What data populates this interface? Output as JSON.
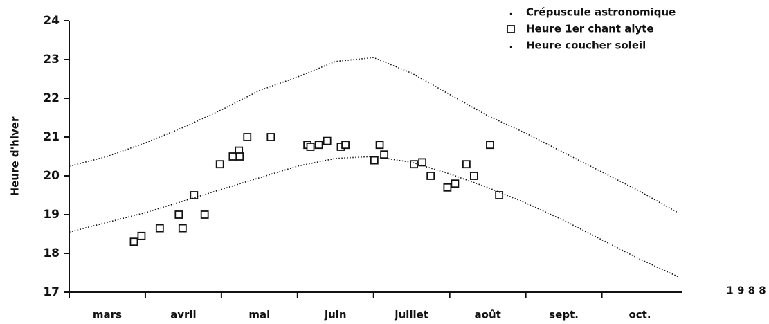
{
  "chart_data": {
    "type": "scatter",
    "ylabel": "Heure d'hiver",
    "annotation": "1 9 8 8",
    "categories": [
      "mars",
      "avril",
      "mai",
      "juin",
      "juillet",
      "août",
      "sept.",
      "oct."
    ],
    "xlim": [
      0,
      8.05
    ],
    "ylim": [
      17,
      24
    ],
    "yticks": [
      17,
      18,
      19,
      20,
      21,
      22,
      23,
      24
    ],
    "legend": "top-right",
    "series": [
      {
        "name": "Crépuscule astronomique",
        "color": "#111111",
        "marker": "dotted-line",
        "x": [
          0,
          0.5,
          1,
          1.5,
          2,
          2.5,
          3,
          3.5,
          4,
          4.5,
          5,
          5.5,
          6,
          6.5,
          7,
          7.5,
          8
        ],
        "values": [
          20.25,
          20.5,
          20.85,
          21.25,
          21.7,
          22.2,
          22.55,
          22.95,
          23.05,
          22.65,
          22.1,
          21.55,
          21.1,
          20.6,
          20.1,
          19.6,
          19.05
        ]
      },
      {
        "name": "Heure 1er chant alyte",
        "color": "#111111",
        "marker": "square",
        "x": [
          0.85,
          0.95,
          1.19,
          1.44,
          1.49,
          1.64,
          1.78,
          1.98,
          2.15,
          2.23,
          2.24,
          2.34,
          2.65,
          3.13,
          3.17,
          3.28,
          3.39,
          3.57,
          3.63,
          4.01,
          4.08,
          4.14,
          4.53,
          4.64,
          4.75,
          4.97,
          5.07,
          5.22,
          5.32,
          5.53,
          5.65
        ],
        "values": [
          18.3,
          18.45,
          18.65,
          19.0,
          18.65,
          19.5,
          19.0,
          20.3,
          20.5,
          20.65,
          20.5,
          21.0,
          21.0,
          20.8,
          20.75,
          20.8,
          20.9,
          20.75,
          20.8,
          20.4,
          20.8,
          20.55,
          20.3,
          20.35,
          20.0,
          19.7,
          19.8,
          20.3,
          20.0,
          20.8,
          19.5
        ]
      },
      {
        "name": "Heure coucher soleil",
        "color": "#111111",
        "marker": "dotted-line",
        "x": [
          0,
          0.5,
          1,
          1.5,
          2,
          2.5,
          3,
          3.5,
          4,
          4.5,
          5,
          5.5,
          6,
          6.5,
          7,
          7.5,
          8
        ],
        "values": [
          18.55,
          18.8,
          19.05,
          19.35,
          19.65,
          19.95,
          20.25,
          20.45,
          20.5,
          20.35,
          20.05,
          19.7,
          19.3,
          18.85,
          18.35,
          17.85,
          17.4
        ]
      }
    ]
  }
}
